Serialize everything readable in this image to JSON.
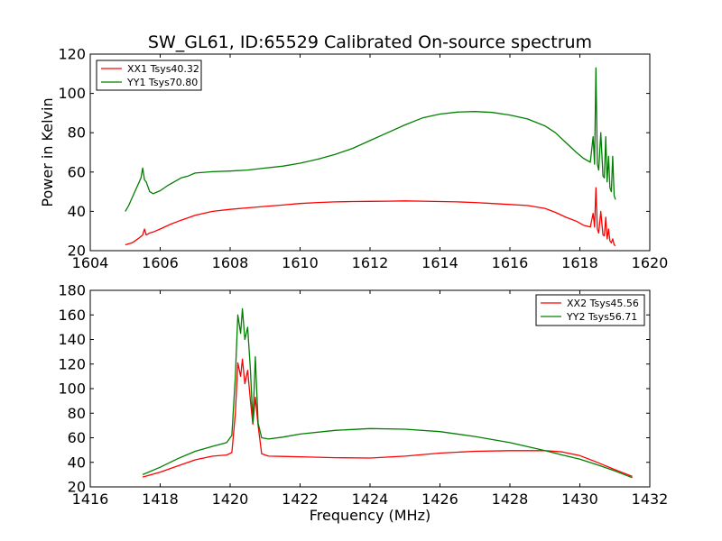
{
  "title": "SW_GL61, ID:65529 Calibrated On-source spectrum",
  "chart_data": [
    {
      "type": "line",
      "ylabel": "Power in Kelvin",
      "xlabel": "",
      "xlim": [
        1604,
        1620
      ],
      "ylim": [
        20,
        120
      ],
      "xticks": [
        1604,
        1606,
        1608,
        1610,
        1612,
        1614,
        1616,
        1618,
        1620
      ],
      "yticks": [
        20,
        40,
        60,
        80,
        100,
        120
      ],
      "legend_position": "top-left",
      "grid": false,
      "series": [
        {
          "name": "XX1 Tsys40.32",
          "color": "#ff0000",
          "x": [
            1605.0,
            1605.2,
            1605.4,
            1605.5,
            1605.55,
            1605.6,
            1605.7,
            1605.8,
            1606.0,
            1606.3,
            1606.6,
            1607.0,
            1607.5,
            1608.0,
            1608.5,
            1609.0,
            1609.5,
            1610.0,
            1610.5,
            1611.0,
            1611.5,
            1612.0,
            1612.5,
            1613.0,
            1613.5,
            1614.0,
            1614.5,
            1615.0,
            1615.5,
            1616.0,
            1616.5,
            1617.0,
            1617.3,
            1617.6,
            1617.9,
            1618.1,
            1618.3,
            1618.38,
            1618.42,
            1618.46,
            1618.5,
            1618.54,
            1618.6,
            1618.66,
            1618.7,
            1618.74,
            1618.78,
            1618.82,
            1618.86,
            1618.9,
            1618.94,
            1618.98,
            1619.02
          ],
          "y": [
            23,
            24,
            26.5,
            28,
            31,
            28,
            29,
            29.5,
            31,
            33.5,
            35.5,
            38,
            40,
            41,
            41.8,
            42.5,
            43.2,
            44,
            44.5,
            44.8,
            45,
            45.1,
            45.2,
            45.3,
            45.2,
            45,
            44.8,
            44.5,
            44,
            43.5,
            43,
            41.5,
            39.5,
            37,
            35,
            33,
            32,
            39,
            32,
            52,
            31,
            29,
            40,
            28,
            27.5,
            37,
            26,
            31,
            25,
            24,
            26,
            23,
            22.5
          ]
        },
        {
          "name": "YY1 Tsys70.80",
          "color": "#008000",
          "x": [
            1605.0,
            1605.1,
            1605.2,
            1605.3,
            1605.4,
            1605.45,
            1605.5,
            1605.55,
            1605.6,
            1605.7,
            1605.8,
            1606.0,
            1606.2,
            1606.4,
            1606.6,
            1606.8,
            1607.0,
            1607.5,
            1608.0,
            1608.5,
            1609.0,
            1609.5,
            1610.0,
            1610.5,
            1611.0,
            1611.5,
            1612.0,
            1612.5,
            1613.0,
            1613.5,
            1614.0,
            1614.5,
            1615.0,
            1615.5,
            1616.0,
            1616.5,
            1617.0,
            1617.3,
            1617.6,
            1617.9,
            1618.1,
            1618.3,
            1618.38,
            1618.42,
            1618.46,
            1618.5,
            1618.54,
            1618.6,
            1618.66,
            1618.7,
            1618.74,
            1618.78,
            1618.82,
            1618.86,
            1618.9,
            1618.94,
            1618.98,
            1619.02
          ],
          "y": [
            40,
            43,
            47,
            51,
            55,
            57,
            62,
            56,
            55,
            50,
            49,
            50.5,
            53,
            55,
            57,
            58,
            59.5,
            60.2,
            60.5,
            61,
            62,
            63,
            64.5,
            66.5,
            69,
            72,
            76,
            80,
            84,
            87.5,
            89.5,
            90.5,
            90.8,
            90.3,
            89,
            87,
            83.5,
            80,
            75,
            70,
            67,
            65,
            78,
            64,
            113,
            64,
            61,
            80,
            58,
            57,
            78,
            55,
            68,
            52,
            50,
            68,
            48,
            46
          ]
        }
      ]
    },
    {
      "type": "line",
      "ylabel": "",
      "xlabel": "Frequency (MHz)",
      "xlim": [
        1416,
        1432
      ],
      "ylim": [
        20,
        180
      ],
      "xticks": [
        1416,
        1418,
        1420,
        1422,
        1424,
        1426,
        1428,
        1430,
        1432
      ],
      "yticks": [
        20,
        40,
        60,
        80,
        100,
        120,
        140,
        160,
        180
      ],
      "legend_position": "top-right",
      "grid": false,
      "series": [
        {
          "name": "XX2 Tsys45.56",
          "color": "#ff0000",
          "x": [
            1417.5,
            1418.0,
            1418.5,
            1419.0,
            1419.5,
            1419.9,
            1420.05,
            1420.15,
            1420.22,
            1420.3,
            1420.35,
            1420.42,
            1420.5,
            1420.58,
            1420.65,
            1420.72,
            1420.8,
            1420.9,
            1421.1,
            1421.5,
            1422.0,
            1423.0,
            1424.0,
            1425.0,
            1426.0,
            1427.0,
            1428.0,
            1429.0,
            1429.5,
            1430.0,
            1430.5,
            1431.0,
            1431.5
          ],
          "y": [
            28,
            32,
            37,
            42,
            45,
            46,
            48,
            80,
            121,
            110,
            124,
            104,
            115,
            90,
            71,
            93,
            70,
            47,
            45,
            44.8,
            44.5,
            43.8,
            43.5,
            45,
            47.5,
            49,
            49.5,
            49.5,
            48.5,
            45.5,
            40,
            34,
            28.5
          ]
        },
        {
          "name": "YY2 Tsys56.71",
          "color": "#008000",
          "x": [
            1417.5,
            1418.0,
            1418.5,
            1419.0,
            1419.5,
            1419.9,
            1420.05,
            1420.15,
            1420.22,
            1420.3,
            1420.35,
            1420.42,
            1420.5,
            1420.58,
            1420.65,
            1420.72,
            1420.8,
            1420.9,
            1421.1,
            1421.5,
            1422.0,
            1423.0,
            1424.0,
            1425.0,
            1426.0,
            1427.0,
            1428.0,
            1429.0,
            1429.5,
            1430.0,
            1430.5,
            1431.0,
            1431.5
          ],
          "y": [
            30,
            36,
            43,
            49,
            53,
            56,
            62,
            110,
            160,
            145,
            165,
            140,
            150,
            115,
            72,
            126,
            72,
            60,
            59,
            60.5,
            63,
            66,
            67.5,
            67,
            65,
            61,
            56,
            49.5,
            46,
            42.5,
            38,
            33,
            27.5
          ]
        }
      ]
    }
  ]
}
